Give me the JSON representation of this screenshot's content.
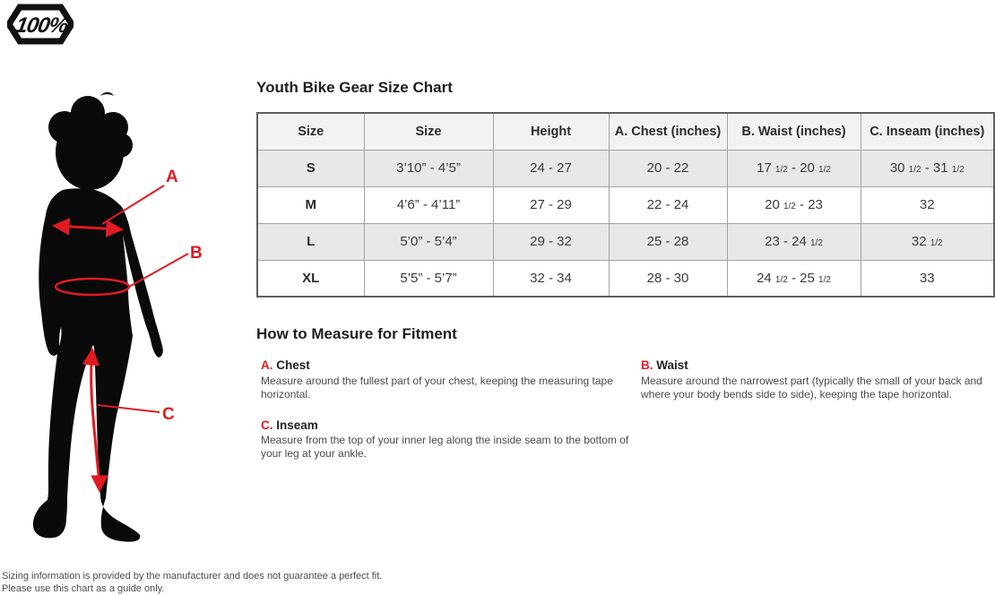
{
  "colors": {
    "accent-red": "#e01b22"
  },
  "brand": {
    "logo_text": "100%"
  },
  "page": {
    "chart_title": "Youth Bike Gear Size Chart",
    "measure_title": "How to Measure for Fitment"
  },
  "figure": {
    "labels": {
      "a": "A",
      "b": "B",
      "c": "C"
    }
  },
  "size_table": {
    "headers": [
      "Size",
      "Size",
      "Height",
      "A. Chest (inches)",
      "B. Waist (inches)",
      "C. Inseam (inches)"
    ],
    "rows": [
      [
        "S",
        "3’10” - 4’5”",
        "24 - 27",
        "20 - 22",
        "17 1/2 - 20 1/2",
        "30 1/2 - 31 1/2"
      ],
      [
        "M",
        "4’6” - 4’11”",
        "27 - 29",
        "22 - 24",
        "20 1/2 - 23",
        "32"
      ],
      [
        "L",
        "5’0” - 5’4”",
        "29 - 32",
        "25 - 28",
        "23 - 24 1/2",
        "32 1/2"
      ],
      [
        "XL",
        "5’5” - 5’7”",
        "32 - 34",
        "28 - 30",
        "24 1/2 - 25 1/2",
        "33"
      ]
    ]
  },
  "measurements": [
    {
      "letter": "A.",
      "name": "Chest",
      "description": "Measure around the fullest part of your chest, keeping the measuring tape horizontal."
    },
    {
      "letter": "B.",
      "name": "Waist",
      "description": "Measure around the narrowest part (typically the small of your back and where your body bends side to side), keeping the tape horizontal."
    },
    {
      "letter": "C.",
      "name": "Inseam",
      "description": "Measure from the top of your inner leg along the inside seam to the bottom of your leg at your ankle."
    }
  ],
  "footer": {
    "line1": "Sizing information is provided by the manufacturer and does not guarantee a perfect fit.",
    "line2": "Please use this chart as a guide only."
  }
}
